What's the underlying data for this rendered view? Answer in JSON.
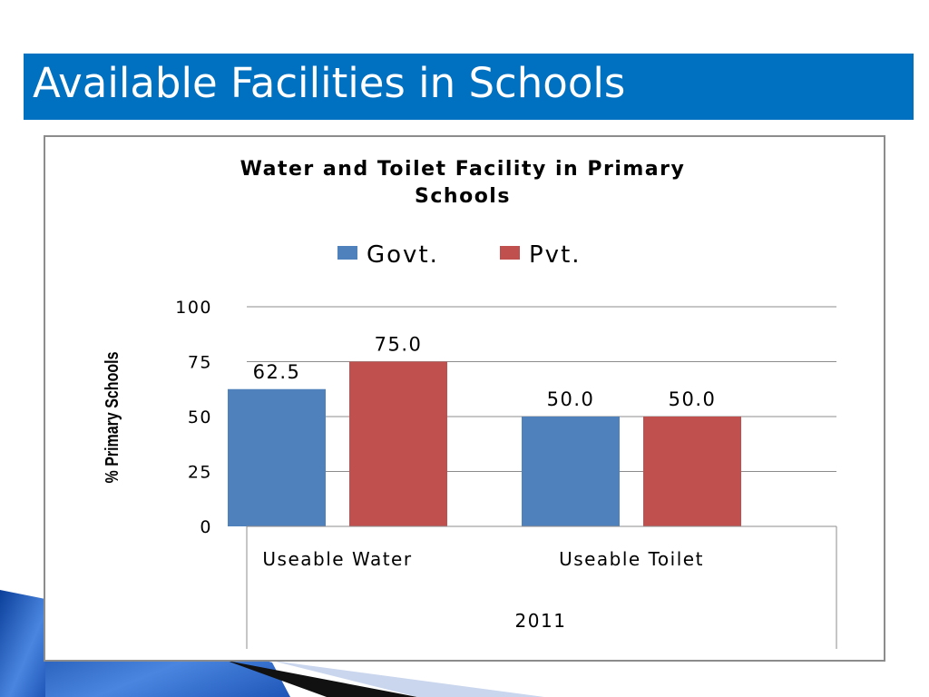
{
  "slide": {
    "title": "Available Facilities in Schools"
  },
  "colors": {
    "title_bar": "#0070c0",
    "govt": "#4f81bd",
    "pvt": "#c0504d"
  },
  "chart_data": {
    "type": "bar",
    "title_lines": [
      "Water and  Toilet Facility  in Primary",
      "Schools"
    ],
    "ylabel": "% Primary Schools",
    "xlabel": "2011",
    "categories": [
      "Useable Water",
      "Useable Toilet"
    ],
    "series": [
      {
        "name": "Govt.",
        "color": "#4f81bd",
        "values": [
          62.5,
          50.0
        ],
        "labels": [
          "62.5",
          "50.0"
        ]
      },
      {
        "name": "Pvt.",
        "color": "#c0504d",
        "values": [
          75.0,
          50.0
        ],
        "labels": [
          "75.0",
          "50.0"
        ]
      }
    ],
    "ylim": [
      0,
      100
    ],
    "yticks": [
      "0",
      "25",
      "50",
      "75",
      "100"
    ],
    "legend_position": "top",
    "grid": true
  }
}
